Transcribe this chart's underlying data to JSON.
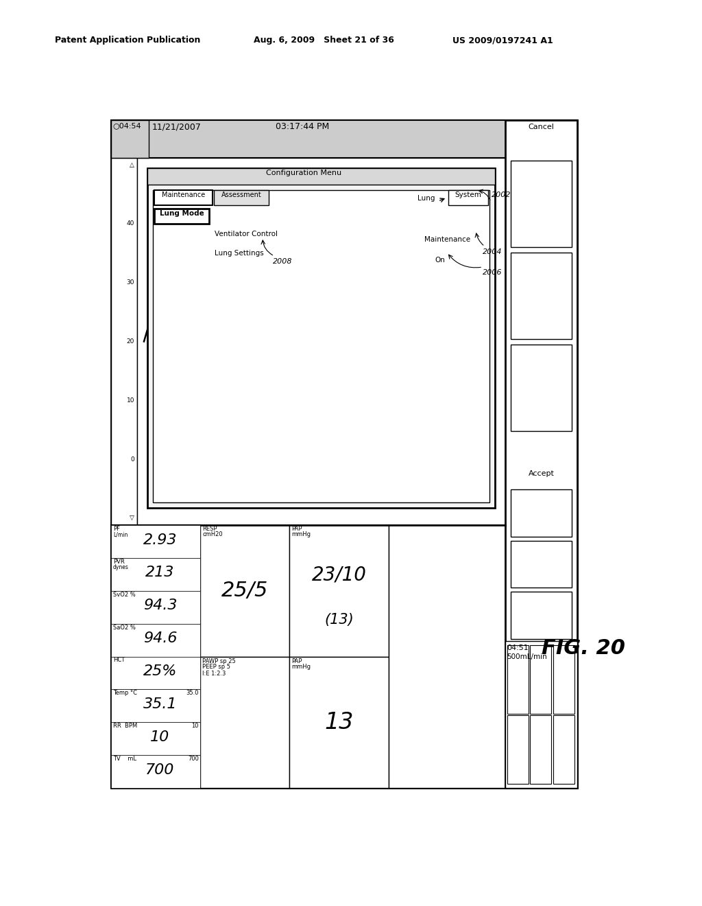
{
  "bg_color": "#ffffff",
  "header_left": "Patent Application Publication",
  "header_mid": "Aug. 6, 2009   Sheet 21 of 36",
  "header_right": "US 2009/0197241 A1",
  "fig_label": "FIG. 20",
  "date": "11/21/2007",
  "time": "03:17:44 PM",
  "clock": "04:54",
  "left_col_labels": [
    "PF",
    "PVR",
    "SvO2 %",
    "SaO2 %",
    "HCT",
    "Temp °C",
    "RR  BPM",
    "TV    mL"
  ],
  "left_col_units": [
    "L/min",
    "dynes",
    "",
    "",
    "",
    "",
    "",
    ""
  ],
  "left_col_values": [
    "2.93",
    "213",
    "94.3",
    "94.6",
    "25%",
    "35.1",
    "10",
    "700"
  ],
  "left_col_small": [
    "",
    "",
    "",
    "",
    "",
    "35.0",
    "10",
    "700"
  ],
  "y_axis_vals": [
    "△",
    "40",
    "30",
    "20",
    "10",
    "0",
    "▽"
  ],
  "config_menu_title": "Configuration Menu",
  "tabs_left": [
    "Maintenance",
    "Assessment"
  ],
  "tabs_right": [
    "Lung",
    "System"
  ],
  "menu_items": [
    "Lung Mode",
    "Ventilator Control",
    "Lung Settings"
  ],
  "right_labels": [
    "Maintenance",
    "On"
  ],
  "ref_nums": [
    "2002",
    "2004",
    "2006",
    "2008"
  ],
  "accept_cancel": [
    "Accept",
    "Cancel"
  ],
  "bottom_right_time": "04:51",
  "bottom_right_flow": "500mL/min"
}
